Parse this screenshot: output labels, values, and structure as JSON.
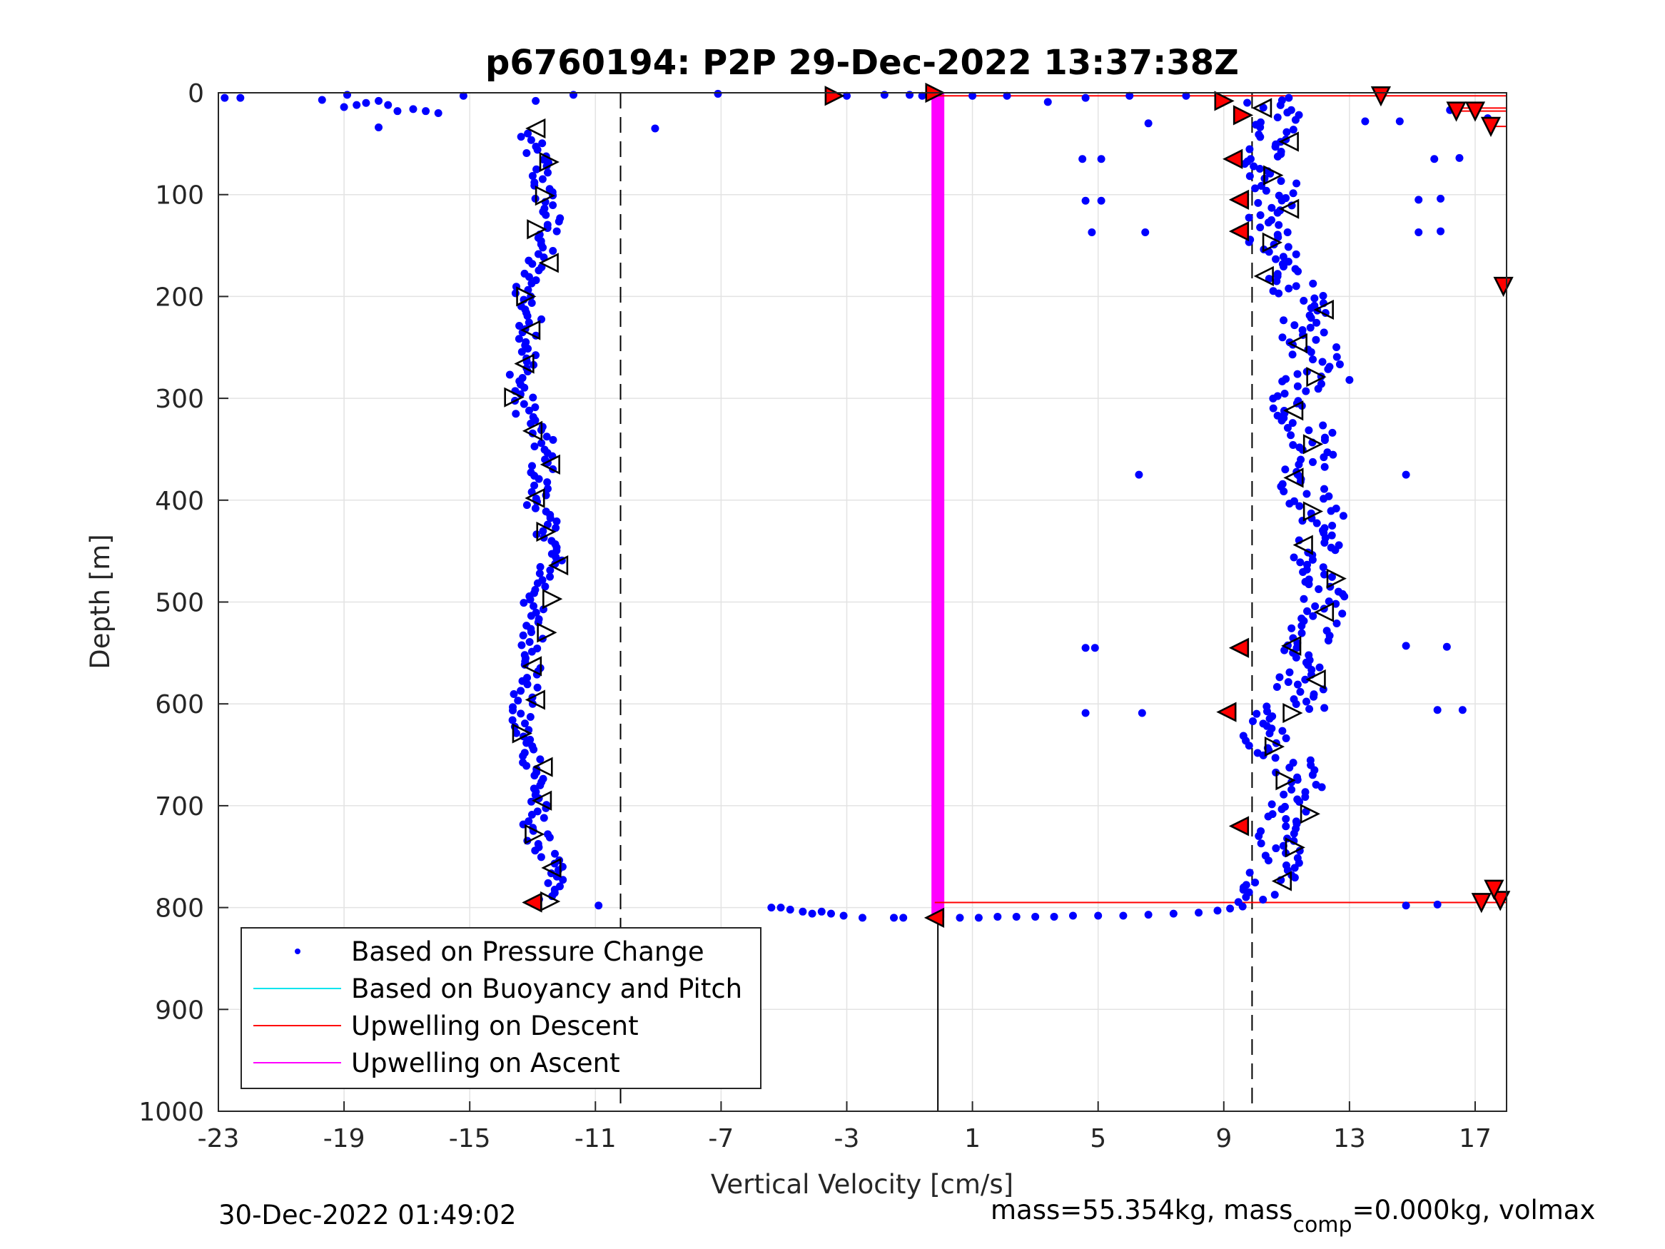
{
  "chart_data": {
    "type": "scatter",
    "title": "p6760194: P2P 29-Dec-2022 13:37:38Z",
    "xlabel": "Vertical Velocity [cm/s]",
    "ylabel": "Depth [m]",
    "xlim": [
      -23,
      18
    ],
    "ylim": [
      0,
      1000
    ],
    "y_reversed": true,
    "x_ticks": [
      -23,
      -19,
      -15,
      -11,
      -7,
      -3,
      1,
      5,
      9,
      13,
      17
    ],
    "y_ticks": [
      0,
      100,
      200,
      300,
      400,
      500,
      600,
      700,
      800,
      900,
      1000
    ],
    "grid": true,
    "legend_position": "bottom-left",
    "legend": [
      {
        "label": "Based on Pressure Change",
        "color": "#0000ff",
        "style": "dot"
      },
      {
        "label": "Based on Buoyancy and Pitch",
        "color": "#00e5ee",
        "style": "line"
      },
      {
        "label": "Upwelling on Descent",
        "color": "#ff0000",
        "style": "line"
      },
      {
        "label": "Upwelling on Ascent",
        "color": "#ff00ff",
        "style": "line"
      }
    ],
    "reference_lines": {
      "dashed_x": [
        -10.2,
        9.9
      ],
      "solid_x": [
        -0.1
      ]
    },
    "descent_cluster": {
      "name": "Based on Pressure Change",
      "depth_range": [
        40,
        795
      ],
      "velocity_center": -12.9,
      "velocity_spread": 0.8
    },
    "ascent_cluster": {
      "name": "Based on Pressure Change",
      "depth_range": [
        5,
        795
      ],
      "velocity_profile": [
        {
          "depth": 10,
          "velocity": 10.3
        },
        {
          "depth": 60,
          "velocity": 10.6
        },
        {
          "depth": 120,
          "velocity": 10.4
        },
        {
          "depth": 180,
          "velocity": 10.8
        },
        {
          "depth": 220,
          "velocity": 11.8
        },
        {
          "depth": 300,
          "velocity": 11.5
        },
        {
          "depth": 400,
          "velocity": 11.9
        },
        {
          "depth": 500,
          "velocity": 12.0
        },
        {
          "depth": 560,
          "velocity": 11.6
        },
        {
          "depth": 620,
          "velocity": 10.6
        },
        {
          "depth": 700,
          "velocity": 11.4
        },
        {
          "depth": 750,
          "velocity": 10.5
        },
        {
          "depth": 790,
          "velocity": 10.2
        }
      ]
    },
    "surface_points": [
      [
        -22.8,
        5
      ],
      [
        -22.3,
        5
      ],
      [
        -19.7,
        7
      ],
      [
        -18.9,
        2
      ],
      [
        -19.0,
        14
      ],
      [
        -18.6,
        12
      ],
      [
        -18.3,
        10
      ],
      [
        -17.9,
        8
      ],
      [
        -17.6,
        12
      ],
      [
        -17.9,
        34
      ],
      [
        -17.3,
        18
      ],
      [
        -16.8,
        16
      ],
      [
        -16.4,
        18
      ],
      [
        -16.0,
        20
      ],
      [
        -15.2,
        3
      ],
      [
        -12.9,
        8
      ],
      [
        -11.7,
        2
      ],
      [
        -9.1,
        35
      ],
      [
        -7.1,
        1
      ],
      [
        -3.0,
        3
      ],
      [
        -1.8,
        2
      ],
      [
        -1.0,
        2
      ],
      [
        -0.6,
        3
      ],
      [
        1.0,
        3
      ],
      [
        2.1,
        3
      ],
      [
        3.4,
        9
      ],
      [
        4.6,
        5
      ],
      [
        6.0,
        3
      ],
      [
        6.6,
        30
      ],
      [
        7.8,
        3
      ],
      [
        13.5,
        28
      ],
      [
        14.6,
        28
      ],
      [
        16.2,
        17
      ],
      [
        17.4,
        25
      ]
    ],
    "bottom_points": [
      [
        -5.4,
        800
      ],
      [
        -5.1,
        800
      ],
      [
        -4.8,
        802
      ],
      [
        -4.4,
        804
      ],
      [
        -4.1,
        806
      ],
      [
        -3.8,
        804
      ],
      [
        -3.5,
        806
      ],
      [
        -3.1,
        808
      ],
      [
        -2.5,
        810
      ],
      [
        -1.5,
        810
      ],
      [
        -1.2,
        810
      ],
      [
        -10.9,
        798
      ],
      [
        0.6,
        810
      ],
      [
        1.2,
        810
      ],
      [
        1.8,
        809
      ],
      [
        2.4,
        809
      ],
      [
        3.0,
        809
      ],
      [
        3.6,
        809
      ],
      [
        4.2,
        808
      ],
      [
        5.0,
        808
      ],
      [
        5.8,
        808
      ],
      [
        6.6,
        807
      ],
      [
        7.4,
        806
      ],
      [
        8.2,
        805
      ],
      [
        8.8,
        803
      ],
      [
        9.2,
        801
      ],
      [
        9.6,
        799
      ],
      [
        14.8,
        798
      ],
      [
        15.8,
        797
      ]
    ],
    "outlier_points": [
      [
        4.5,
        65
      ],
      [
        5.1,
        65
      ],
      [
        4.6,
        106
      ],
      [
        5.1,
        106
      ],
      [
        4.8,
        137
      ],
      [
        6.5,
        137
      ],
      [
        6.3,
        375
      ],
      [
        4.6,
        545
      ],
      [
        4.9,
        545
      ],
      [
        4.6,
        609
      ],
      [
        6.4,
        609
      ],
      [
        15.7,
        65
      ],
      [
        16.5,
        64
      ],
      [
        15.9,
        104
      ],
      [
        15.2,
        105
      ],
      [
        15.2,
        137
      ],
      [
        15.9,
        136
      ],
      [
        14.8,
        375
      ],
      [
        14.8,
        543
      ],
      [
        16.1,
        544
      ],
      [
        15.8,
        606
      ],
      [
        16.6,
        606
      ],
      [
        12.2,
        604
      ],
      [
        13.0,
        282
      ]
    ],
    "descent_marker_velocity": -0.2,
    "descent_marker_depth_range": [
      0,
      795
    ],
    "descent_markers": [
      {
        "depth": 3,
        "velocity": 14.0
      },
      {
        "depth": 18,
        "velocity": 17.0
      },
      {
        "depth": 33,
        "velocity": 17.5
      },
      {
        "depth": 190,
        "velocity": 17.9
      },
      {
        "depth": 793,
        "velocity": 17.8
      }
    ],
    "ascent_line_velocity": -0.1,
    "ascent_line_depth_range": [
      0,
      810
    ],
    "footer_left": "30-Dec-2022 01:49:02",
    "footer_right_prefix": "mass=55.354kg, mass",
    "footer_right_sub": "comp",
    "footer_right_suffix": "=0.000kg, volmax"
  }
}
